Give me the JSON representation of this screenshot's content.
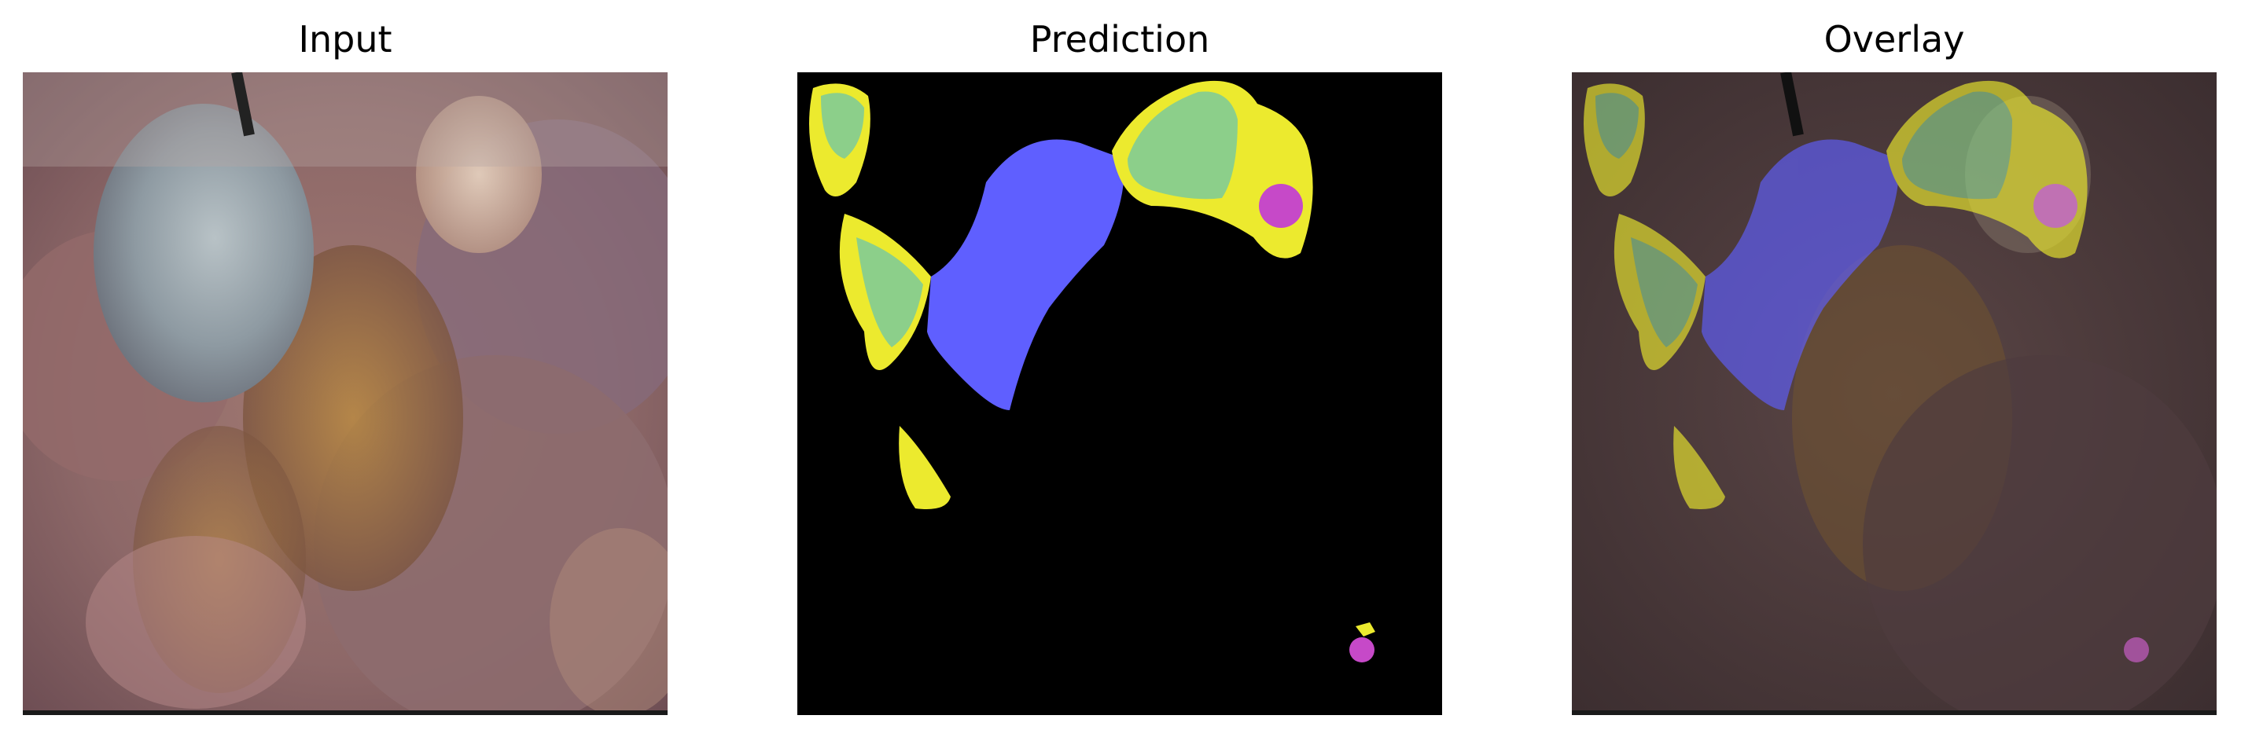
{
  "panels": [
    {
      "title": "Input"
    },
    {
      "title": "Prediction"
    },
    {
      "title": "Overlay"
    }
  ],
  "colors": {
    "class_yellow": "#ecea2e",
    "class_green": "#8ccf8a",
    "class_blue": "#5f5fff",
    "class_magenta": "#c649c8",
    "background": "#000000"
  },
  "icons": [
    "laparoscopic-tissue-image",
    "segmentation-mask",
    "overlay-image"
  ]
}
